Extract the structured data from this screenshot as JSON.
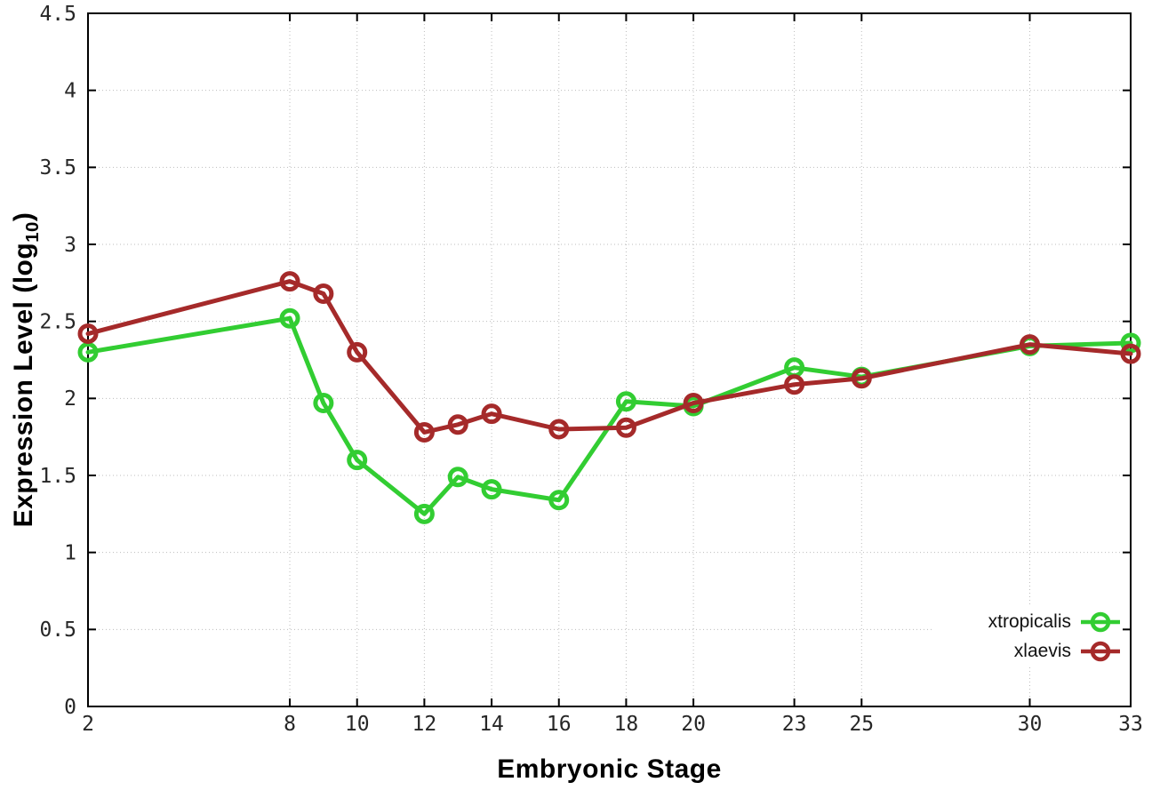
{
  "chart_data": {
    "type": "line",
    "title": "",
    "xlabel": "Embryonic Stage",
    "ylabel": "Expression Level (log10)",
    "ylabel_rich": {
      "base": "Expression Level (log",
      "subscript": "10",
      "close": ")"
    },
    "xlim": [
      2,
      33
    ],
    "ylim": [
      0,
      4.5
    ],
    "x_ticks": [
      2,
      8,
      10,
      12,
      14,
      16,
      18,
      20,
      23,
      25,
      30,
      33
    ],
    "y_ticks": [
      0,
      0.5,
      1,
      1.5,
      2,
      2.5,
      3,
      3.5,
      4,
      4.5
    ],
    "grid": true,
    "legend_position": "bottom-right",
    "x": [
      2,
      8,
      9,
      10,
      12,
      13,
      14,
      16,
      18,
      20,
      23,
      25,
      30,
      33
    ],
    "series": [
      {
        "name": "xtropicalis",
        "color": "#32cd32",
        "values": [
          2.3,
          2.52,
          1.97,
          1.6,
          1.25,
          1.49,
          1.41,
          1.34,
          1.98,
          1.95,
          2.2,
          2.14,
          2.34,
          2.36
        ]
      },
      {
        "name": "xlaevis",
        "color": "#a52a2a",
        "values": [
          2.42,
          2.76,
          2.68,
          2.3,
          1.78,
          1.83,
          1.9,
          1.8,
          1.81,
          1.97,
          2.09,
          2.13,
          2.35,
          2.29
        ]
      }
    ],
    "axis_color": "#000000",
    "grid_color": "#bcbcbc",
    "tick_label_color": "#262626"
  }
}
